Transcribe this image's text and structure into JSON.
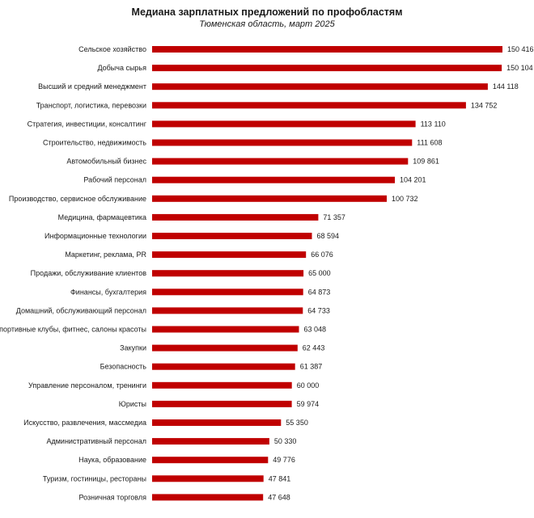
{
  "chart_data": {
    "type": "bar",
    "orientation": "horizontal",
    "title": "Медиана зарплатных предложений по профобластям",
    "subtitle": "Тюменская область, март 2025",
    "xlabel": "",
    "ylabel": "",
    "xlim": [
      0,
      150416
    ],
    "grid": false,
    "legend": "none",
    "bar_color": "#c00000",
    "categories": [
      "Сельское хозяйство",
      "Добыча сырья",
      "Высший и средний менеджмент",
      "Транспорт, логистика, перевозки",
      "Стратегия, инвестиции, консалтинг",
      "Строительство, недвижимость",
      "Автомобильный бизнес",
      "Рабочий персонал",
      "Производство, сервисное обслуживание",
      "Медицина, фармацевтика",
      "Информационные технологии",
      "Маркетинг, реклама, PR",
      "Продажи, обслуживание клиентов",
      "Финансы, бухгалтерия",
      "Домашний, обслуживающий персонал",
      "Спортивные клубы, фитнес, салоны красоты",
      "Закупки",
      "Безопасность",
      "Управление персоналом, тренинги",
      "Юристы",
      "Искусство, развлечения, массмедиа",
      "Административный персонал",
      "Наука, образование",
      "Туризм, гостиницы, рестораны",
      "Розничная торговля"
    ],
    "values": [
      150416,
      150104,
      144118,
      134752,
      113110,
      111608,
      109861,
      104201,
      100732,
      71357,
      68594,
      66076,
      65000,
      64873,
      64733,
      63048,
      62443,
      61387,
      60000,
      59974,
      55350,
      50330,
      49776,
      47841,
      47648
    ],
    "value_labels": [
      "150 416",
      "150 104",
      "144 118",
      "134 752",
      "113 110",
      "111 608",
      "109 861",
      "104 201",
      "100 732",
      "71 357",
      "68 594",
      "66 076",
      "65 000",
      "64 873",
      "64 733",
      "63 048",
      "62 443",
      "61 387",
      "60 000",
      "59 974",
      "55 350",
      "50 330",
      "49 776",
      "47 841",
      "47 648"
    ]
  }
}
